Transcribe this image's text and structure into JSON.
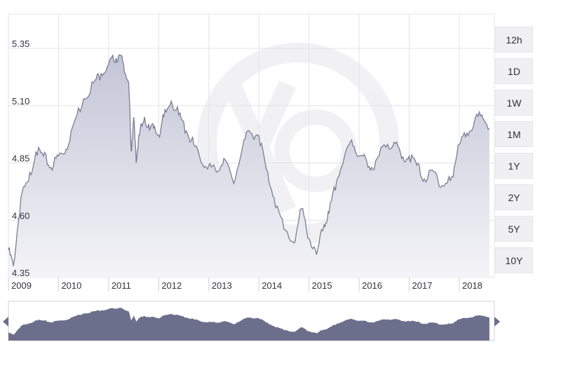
{
  "chart_data": {
    "type": "area",
    "title": "",
    "xlabel": "",
    "ylabel": "",
    "ylim": [
      4.35,
      5.5
    ],
    "yticks": [
      "5.35",
      "5.10",
      "4.85",
      "4.60",
      "4.35"
    ],
    "xticks": [
      "2009",
      "2010",
      "2011",
      "2012",
      "2013",
      "2014",
      "2015",
      "2016",
      "2017",
      "2018"
    ],
    "grid": true,
    "series": [
      {
        "name": "",
        "x": [
          2009.0,
          2009.1,
          2009.25,
          2009.4,
          2009.55,
          2009.7,
          2009.85,
          2010.0,
          2010.15,
          2010.3,
          2010.5,
          2010.7,
          2010.85,
          2011.0,
          2011.1,
          2011.2,
          2011.3,
          2011.4,
          2011.45,
          2011.5,
          2011.55,
          2011.6,
          2011.7,
          2011.8,
          2011.9,
          2012.0,
          2012.1,
          2012.25,
          2012.4,
          2012.55,
          2012.7,
          2012.85,
          2013.0,
          2013.15,
          2013.3,
          2013.5,
          2013.7,
          2013.85,
          2014.0,
          2014.15,
          2014.3,
          2014.5,
          2014.7,
          2014.85,
          2015.0,
          2015.15,
          2015.3,
          2015.4,
          2015.55,
          2015.7,
          2015.85,
          2016.0,
          2016.15,
          2016.3,
          2016.5,
          2016.7,
          2016.85,
          2017.0,
          2017.15,
          2017.3,
          2017.5,
          2017.65,
          2017.75,
          2017.85,
          2018.0,
          2018.15,
          2018.3,
          2018.45,
          2018.6
        ],
        "values": [
          4.47,
          4.4,
          4.7,
          4.77,
          4.9,
          4.88,
          4.83,
          4.88,
          4.91,
          5.02,
          5.13,
          5.2,
          5.24,
          5.28,
          5.3,
          5.32,
          5.28,
          5.2,
          4.9,
          5.05,
          4.85,
          4.97,
          5.03,
          5.02,
          5.0,
          4.97,
          5.05,
          5.12,
          5.06,
          4.99,
          4.93,
          4.85,
          4.84,
          4.81,
          4.87,
          4.76,
          4.95,
          4.98,
          4.97,
          4.82,
          4.7,
          4.56,
          4.5,
          4.65,
          4.52,
          4.45,
          4.58,
          4.63,
          4.77,
          4.87,
          4.95,
          4.88,
          4.86,
          4.82,
          4.93,
          4.94,
          4.87,
          4.88,
          4.84,
          4.78,
          4.81,
          4.75,
          4.76,
          4.79,
          4.93,
          4.98,
          5.03,
          5.06,
          5.0
        ]
      }
    ],
    "range_buttons": [
      "12h",
      "1D",
      "1W",
      "1M",
      "1Y",
      "2Y",
      "5Y",
      "10Y"
    ]
  },
  "colors": {
    "line": "#7b7d95",
    "fill_top": "#c3c5d6",
    "fill_bottom": "#f4f4f8",
    "nav_fill": "#6c6f8c",
    "grid": "#e3e3e8",
    "tick_text": "#33333c",
    "button_bg": "#f0f0f3"
  }
}
